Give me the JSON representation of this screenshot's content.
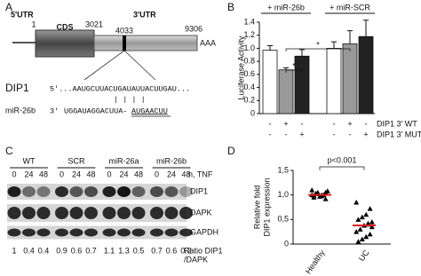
{
  "chart_data": [
    {
      "type": "bar",
      "panel": "B",
      "y_label": "Luciferase Activity",
      "group_labels": [
        "+ miR-26b",
        "+ miR-SCR"
      ],
      "values": [
        0.97,
        0.67,
        0.88,
        1.0,
        1.07,
        1.18
      ],
      "errors": [
        0.07,
        0.03,
        0.1,
        0.1,
        0.2,
        0.25
      ],
      "colors": [
        "#ffffff",
        "#999999",
        "#222222",
        "#ffffff",
        "#999999",
        "#222222"
      ],
      "conditions": [
        {
          "label": "DIP1 3' WT",
          "signs": [
            "-",
            "+",
            "-",
            "-",
            "+",
            "-"
          ]
        },
        {
          "label": "DIP1 3' MUT",
          "signs": [
            "-",
            "-",
            "+",
            "-",
            "-",
            "+"
          ]
        }
      ],
      "annotations": [
        "*",
        "*"
      ],
      "ylim": [
        0,
        1.4
      ],
      "yticks": [
        0,
        0.2,
        0.4,
        0.6,
        0.8,
        {
          "value": 1,
          "label": "1.0"
        },
        1.2,
        1.4
      ]
    },
    {
      "type": "scatter",
      "panel": "D",
      "y_label": [
        "Relative fold",
        "DIP1 expression"
      ],
      "categories": [
        "Healthy",
        "UC"
      ],
      "points": [
        [
          1.0,
          1.05,
          0.98,
          1.02,
          0.95,
          1.08,
          1.0,
          0.97,
          1.03,
          1.1,
          0.92,
          1.0,
          1.05,
          0.99
        ],
        [
          0.85,
          0.72,
          0.6,
          0.55,
          0.5,
          0.45,
          0.4,
          0.38,
          0.3,
          0.25,
          0.2,
          0.15,
          0.1,
          0.05,
          0.35,
          0.42
        ]
      ],
      "medians": [
        1.0,
        0.38
      ],
      "median_color": "#e02020",
      "point_color": "#000000",
      "annotation": "p<0.001",
      "ylim": [
        0,
        1.5
      ],
      "yticks": [
        0,
        {
          "value": 0.5,
          "label": "0,5"
        },
        {
          "value": 1,
          "label": "1,0"
        },
        {
          "value": 1.5,
          "label": "1,5"
        }
      ]
    }
  ],
  "panel_a": {
    "label": "A",
    "utr5": "5'UTR",
    "utr3": "3'UTR",
    "cds": "CDS",
    "positions": [
      "1",
      "3021",
      "4033",
      "9306"
    ],
    "polya": "AAA",
    "dip1_name": "DIP1",
    "dip1_seq": "5'...AAUGCUUACUGAUAUUACUUGAU...",
    "pairing": "| | | |",
    "mir_name": "miR-26b",
    "mir_end": "3'",
    "mir_seq": "UGGAUAGGACUUA-",
    "mir_seed": "AUGAACUU"
  },
  "panel_b_label": "B",
  "panel_c": {
    "label": "C",
    "groups": [
      "WT",
      "SCR",
      "miR-26a",
      "miR-26b"
    ],
    "times": [
      0,
      24,
      48
    ],
    "time_unit": "h, TNF",
    "rows": [
      "DIP1",
      "DAPK",
      "GAPDH"
    ],
    "ratios": [
      1,
      0.4,
      0.4,
      0.9,
      0.6,
      0.7,
      1.1,
      1.3,
      0.5,
      0.7,
      0.6,
      0.2
    ],
    "ratio_label": [
      "Ratio DIP1",
      "/DAPK"
    ]
  },
  "panel_d_label": "D"
}
